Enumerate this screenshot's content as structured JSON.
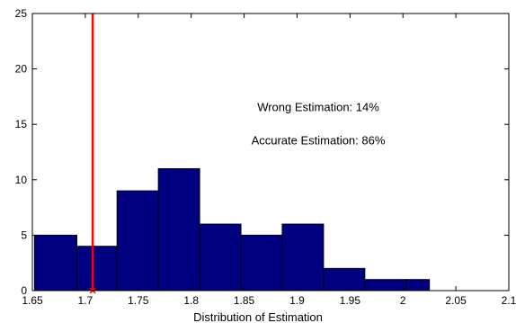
{
  "chart_data": {
    "type": "bar",
    "xlabel": "Distribution of Estimation",
    "ylabel": "",
    "title": "",
    "xlim": [
      1.65,
      2.1
    ],
    "ylim": [
      0,
      25
    ],
    "grid": false,
    "xticks": [
      "1.65",
      "1.7",
      "1.75",
      "1.8",
      "1.85",
      "1.9",
      "1.95",
      "2",
      "2.05",
      "2.1"
    ],
    "yticks": [
      "0",
      "5",
      "10",
      "15",
      "20",
      "25"
    ],
    "bins": [
      {
        "left": 1.652,
        "right": 1.692,
        "count": 5
      },
      {
        "left": 1.692,
        "right": 1.73,
        "count": 4
      },
      {
        "left": 1.73,
        "right": 1.769,
        "count": 9
      },
      {
        "left": 1.769,
        "right": 1.808,
        "count": 11
      },
      {
        "left": 1.808,
        "right": 1.847,
        "count": 6
      },
      {
        "left": 1.847,
        "right": 1.886,
        "count": 5
      },
      {
        "left": 1.886,
        "right": 1.925,
        "count": 6
      },
      {
        "left": 1.925,
        "right": 1.964,
        "count": 2
      },
      {
        "left": 1.964,
        "right": 2.003,
        "count": 1
      },
      {
        "left": 2.003,
        "right": 2.025,
        "count": 1
      }
    ],
    "bar_color": "#000080",
    "reference_line": {
      "x": 1.707,
      "color": "#ff0000"
    },
    "annotations": [
      {
        "text": "Wrong Estimation: 14%",
        "x": 1.92,
        "y": 16.5
      },
      {
        "text": "Accurate Estimation: 86%",
        "x": 1.92,
        "y": 13.5
      }
    ]
  }
}
